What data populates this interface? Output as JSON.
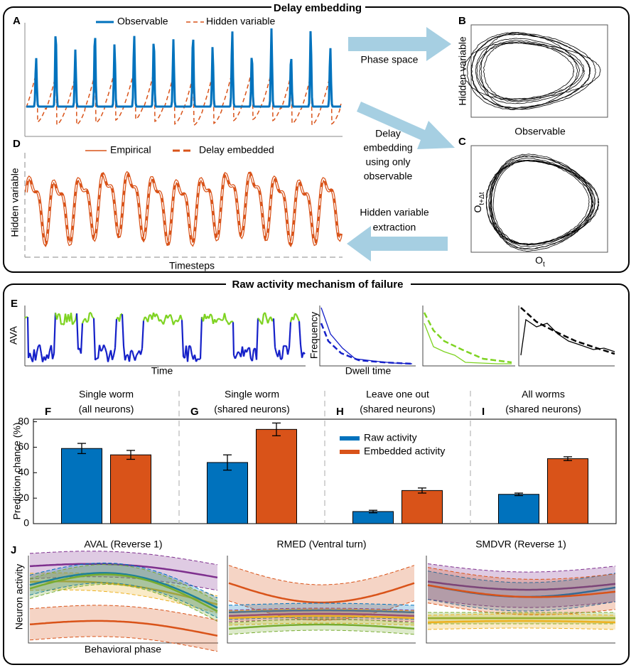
{
  "delay_embedding": {
    "title": "Delay embedding",
    "letters": [
      "A",
      "B",
      "C",
      "D"
    ],
    "legend_a": [
      "Observable",
      "Hidden variable"
    ],
    "legend_d": [
      "Empirical",
      "Delay embedded"
    ],
    "arrow_phase": "Phase space",
    "arrow_delay": [
      "Delay",
      "embedding",
      "using only",
      "observable"
    ],
    "arrow_extract": [
      "Hidden variable",
      "extraction"
    ],
    "b_ylabel": "Hidden variable",
    "b_xlabel": "Observable",
    "c_xlabel": {
      "base": "O",
      "sub": "t"
    },
    "c_ylabel": {
      "base": "O",
      "sub": "t+Δt"
    },
    "d_ylabel": "Hidden variable",
    "d_xlabel": "Timesteps"
  },
  "raw_activity": {
    "title": "Raw activity mechanism of failure",
    "letters": [
      "E",
      "J"
    ],
    "e_ylabel": "AVA",
    "e_xlabel": "Time",
    "hist_ylabel": "Frequency",
    "hist_xlabel": "Dwell time",
    "j_titles": [
      "AVAL (Reverse 1)",
      "RMED (Ventral turn)",
      "SMDVR (Reverse 1)"
    ],
    "j_ylabel": "Neuron activity",
    "j_xlabel": "Behavioral phase"
  },
  "chart_data": {
    "type": "bar",
    "panel_labels": [
      "F",
      "G",
      "H",
      "I"
    ],
    "categories": [
      [
        "Single worm",
        "(all neurons)"
      ],
      [
        "Single worm",
        "(shared neurons)"
      ],
      [
        "Leave one out",
        "(shared neurons)"
      ],
      [
        "All worms",
        "(shared neurons)"
      ]
    ],
    "ylabel": "Prediction chance (%)",
    "series": [
      {
        "name": "Raw activity",
        "color": "#0072bd",
        "values": [
          59,
          48,
          9.5,
          23
        ],
        "errors": [
          4,
          6,
          1,
          1
        ]
      },
      {
        "name": "Embedded activity",
        "color": "#d95319",
        "values": [
          54,
          74,
          26,
          51
        ],
        "errors": [
          3.5,
          5,
          2,
          1.5
        ]
      }
    ],
    "ylim": [
      0,
      82
    ],
    "yticks": [
      0,
      20,
      40,
      60,
      80
    ]
  }
}
